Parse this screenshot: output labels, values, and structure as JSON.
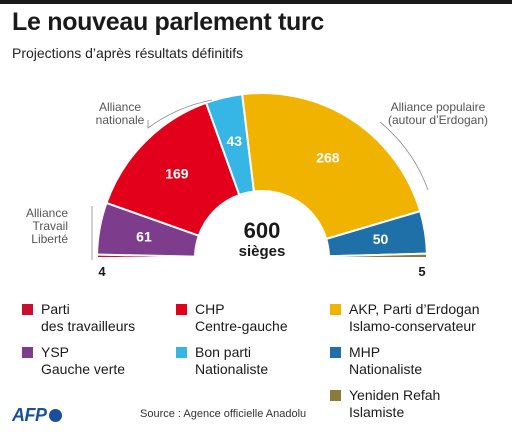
{
  "header": {
    "title": "Le nouveau parlement turc",
    "subtitle": "Projections d’après résultats définitifs"
  },
  "chart_data": {
    "type": "pie",
    "style": "semicircle-parliament",
    "total": 600,
    "center_label": {
      "value": "600",
      "unit": "sièges"
    },
    "series": [
      {
        "name": "Parti des travailleurs",
        "value": 4,
        "color": "#c8102e"
      },
      {
        "name": "YSP Gauche verte",
        "value": 61,
        "color": "#7d3c8c"
      },
      {
        "name": "CHP Centre-gauche",
        "value": 169,
        "color": "#e2001a"
      },
      {
        "name": "Bon parti Nationaliste",
        "value": 43,
        "color": "#35b6e5"
      },
      {
        "name": "AKP, Parti d’Erdogan Islamo-conservateur",
        "value": 268,
        "color": "#f0b400"
      },
      {
        "name": "MHP Nationaliste",
        "value": 50,
        "color": "#1f6fa8"
      },
      {
        "name": "Yeniden Refah Islamiste",
        "value": 5,
        "color": "#8c7a3b"
      }
    ],
    "slice_labels": [
      "",
      "61",
      "169",
      "43",
      "268",
      "50",
      ""
    ],
    "outside_labels": {
      "left": "4",
      "right": "5"
    },
    "alliances": [
      {
        "lines": [
          "Alliance",
          "Travail",
          "Liberté"
        ]
      },
      {
        "lines": [
          "Alliance",
          "nationale"
        ]
      },
      {
        "lines": [
          "Alliance populaire",
          "(autour d’Erdogan)"
        ]
      }
    ]
  },
  "legend": [
    {
      "lines": [
        "Parti",
        "des travailleurs"
      ],
      "color": "#c8102e"
    },
    {
      "lines": [
        "CHP",
        "Centre-gauche"
      ],
      "color": "#e2001a"
    },
    {
      "lines": [
        "AKP, Parti d’Erdogan",
        "Islamo-conservateur"
      ],
      "color": "#f0b400"
    },
    {
      "lines": [
        "YSP",
        "Gauche verte"
      ],
      "color": "#7d3c8c"
    },
    {
      "lines": [
        "Bon parti",
        "Nationaliste"
      ],
      "color": "#35b6e5"
    },
    {
      "lines": [
        "MHP",
        "Nationaliste"
      ],
      "color": "#1f6fa8"
    },
    {
      "lines": [
        "Yeniden Refah",
        "Islamiste"
      ],
      "color": "#8c7a3b"
    }
  ],
  "footer": {
    "logo": "AFP",
    "source": "Source : Agence officielle Anadolu"
  }
}
